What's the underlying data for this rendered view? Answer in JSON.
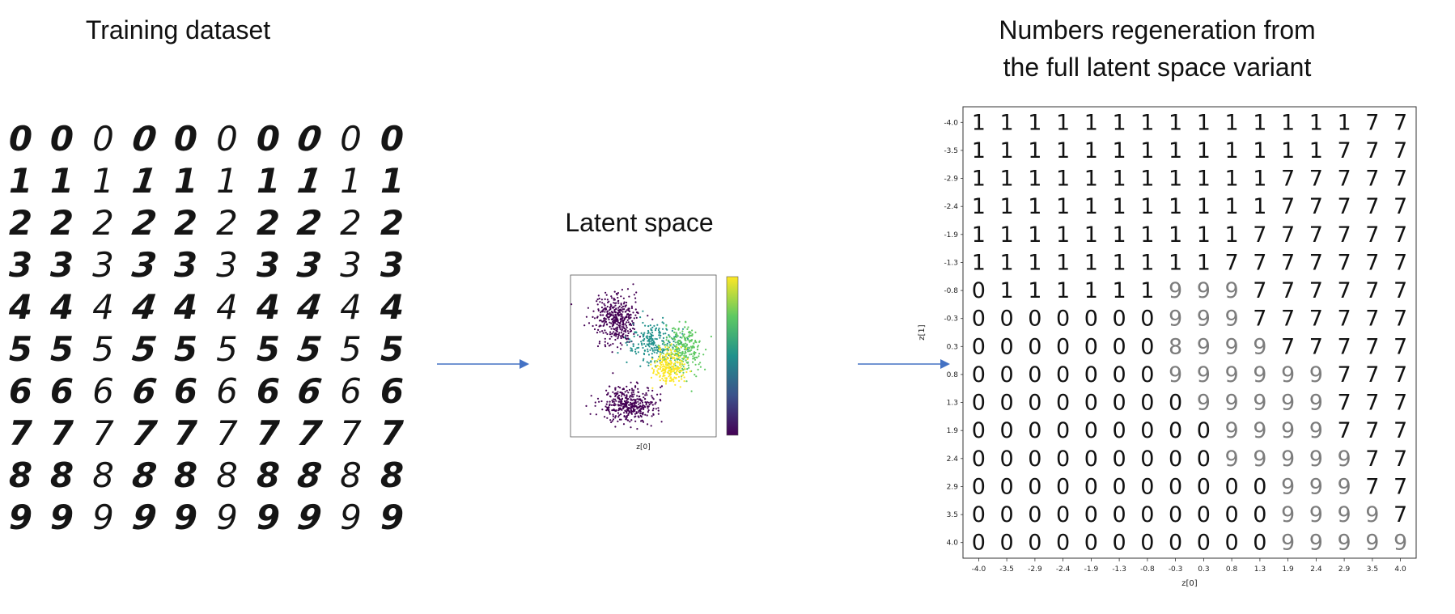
{
  "titles": {
    "training": "Training dataset",
    "latent": "Latent space",
    "regen_line1": "Numbers regeneration from",
    "regen_line2": "the full latent space variant"
  },
  "training_digits": [
    [
      "0",
      "0",
      "0",
      "0",
      "0",
      "0",
      "0",
      "0",
      "0",
      "0"
    ],
    [
      "1",
      "1",
      "1",
      "1",
      "1",
      "1",
      "1",
      "1",
      "1",
      "1"
    ],
    [
      "2",
      "2",
      "2",
      "2",
      "2",
      "2",
      "2",
      "2",
      "2",
      "2"
    ],
    [
      "3",
      "3",
      "3",
      "3",
      "3",
      "3",
      "3",
      "3",
      "3",
      "3"
    ],
    [
      "4",
      "4",
      "4",
      "4",
      "4",
      "4",
      "4",
      "4",
      "4",
      "4"
    ],
    [
      "5",
      "5",
      "5",
      "5",
      "5",
      "5",
      "5",
      "5",
      "5",
      "5"
    ],
    [
      "6",
      "6",
      "6",
      "6",
      "6",
      "6",
      "6",
      "6",
      "6",
      "6"
    ],
    [
      "7",
      "7",
      "7",
      "7",
      "7",
      "7",
      "7",
      "7",
      "7",
      "7"
    ],
    [
      "8",
      "8",
      "8",
      "8",
      "8",
      "8",
      "8",
      "8",
      "8",
      "8"
    ],
    [
      "9",
      "9",
      "9",
      "9",
      "9",
      "9",
      "9",
      "9",
      "9",
      "9"
    ]
  ],
  "colors": {
    "arrow": "#4472c4",
    "viridis": [
      "#440154",
      "#3b528b",
      "#21918c",
      "#5ec962",
      "#fde725"
    ]
  },
  "chart_data": [
    {
      "type": "scatter",
      "name": "latent space",
      "xlabel": "z[0]",
      "ylabel": "",
      "xlim": [
        -4,
        4
      ],
      "ylim": [
        -4,
        4
      ],
      "colorbar": true,
      "clusters": [
        {
          "class": 0,
          "center": [
            -1.5,
            1.8
          ],
          "spread": [
            1.1,
            1.1
          ],
          "count": 380
        },
        {
          "class": 1,
          "center": [
            -0.8,
            -2.4
          ],
          "spread": [
            1.3,
            0.8
          ],
          "count": 380
        },
        {
          "class": 4,
          "center": [
            0.6,
            0.6
          ],
          "spread": [
            1.2,
            0.9
          ],
          "count": 220
        },
        {
          "class": 7,
          "center": [
            2.2,
            0.3
          ],
          "spread": [
            0.9,
            1.1
          ],
          "count": 260
        },
        {
          "class": 9,
          "center": [
            1.4,
            -0.5
          ],
          "spread": [
            0.8,
            0.8
          ],
          "count": 220
        }
      ]
    },
    {
      "type": "heatmap",
      "name": "regeneration grid",
      "xlabel": "z[0]",
      "ylabel": "z[1]",
      "x_ticks": [
        "-4.0",
        "-3.5",
        "-2.9",
        "-2.4",
        "-1.9",
        "-1.3",
        "-0.8",
        "-0.3",
        "0.3",
        "0.8",
        "1.3",
        "1.9",
        "2.4",
        "2.9",
        "3.5",
        "4.0"
      ],
      "y_ticks": [
        "-4.0",
        "-3.5",
        "-2.9",
        "-2.4",
        "-1.9",
        "-1.3",
        "-0.8",
        "-0.3",
        "0.3",
        "0.8",
        "1.3",
        "1.9",
        "2.4",
        "2.9",
        "3.5",
        "4.0"
      ],
      "cells": [
        "1111111111111177",
        "1111111111111777",
        "1111111111177777",
        "1111111111177777",
        "1111111111777777",
        "1111111117777777",
        "0111111999777777",
        "0000000999777777",
        "0000000899977777",
        "0000000999999777",
        "0000000099999777",
        "0000000009999777",
        "0000000009999977",
        "0000000000099977",
        "0000000000099997",
        "0000000000099999"
      ]
    }
  ]
}
